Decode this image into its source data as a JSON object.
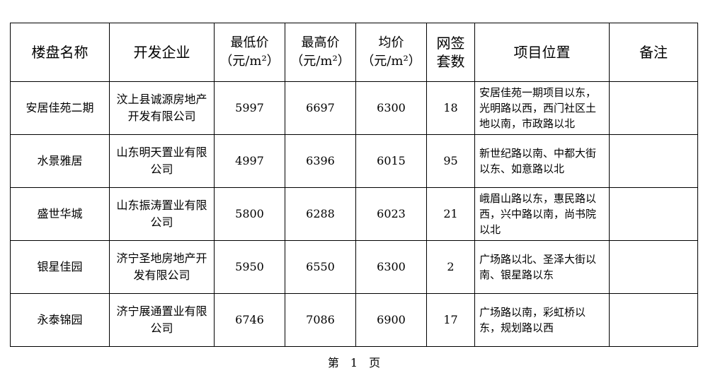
{
  "headers": {
    "name": "楼盘名称",
    "developer": "开发企业",
    "min_price": [
      "最低价",
      "（元/m²）"
    ],
    "max_price": [
      "最高价",
      "（元/m²）"
    ],
    "avg_price": [
      "均价",
      "（元/m²）"
    ],
    "signed": [
      "网签",
      "套数"
    ],
    "location": "项目位置",
    "remarks": "备注"
  },
  "rows": [
    {
      "name": "安居佳苑二期",
      "developer": "汶上县诚源房地产开发有限公司",
      "min": "5997",
      "max": "6697",
      "avg": "6300",
      "signed": "18",
      "location": "安居佳苑一期项目以东，光明路以西，西门社区土地以南，市政路以北",
      "remarks": ""
    },
    {
      "name": "水景雅居",
      "developer": "山东明天置业有限公司",
      "min": "4997",
      "max": "6396",
      "avg": "6015",
      "signed": "95",
      "location": "新世纪路以南、中都大街以东、如意路以北",
      "remarks": ""
    },
    {
      "name": "盛世华城",
      "developer": "山东振涛置业有限公司",
      "min": "5800",
      "max": "6288",
      "avg": "6023",
      "signed": "21",
      "location": "峨眉山路以东，惠民路以西，兴中路以南，尚书院以北",
      "remarks": ""
    },
    {
      "name": "银星佳园",
      "developer": "济宁圣地房地产开发有限公司",
      "min": "5950",
      "max": "6550",
      "avg": "6300",
      "signed": "2",
      "location": "广场路以北、圣泽大街以南、银星路以东",
      "remarks": ""
    },
    {
      "name": "永泰锦园",
      "developer": "济宁展通置业有限公司",
      "min": "6746",
      "max": "7086",
      "avg": "6900",
      "signed": "17",
      "location": "广场路以南，彩虹桥以东，规划路以西",
      "remarks": ""
    }
  ],
  "footer": "第　1　页"
}
